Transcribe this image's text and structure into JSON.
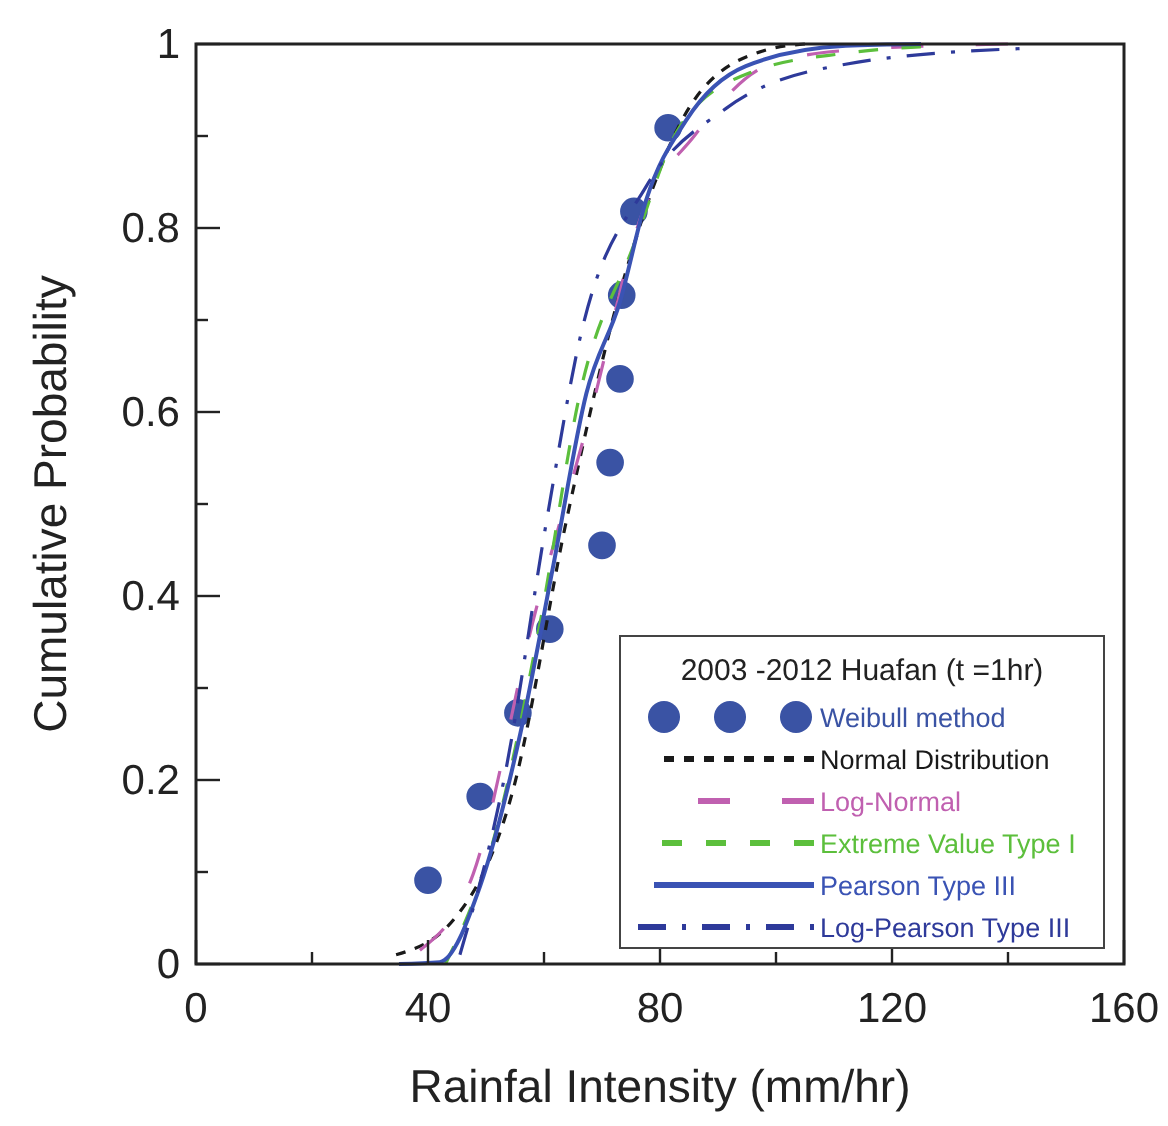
{
  "chart_data": {
    "type": "line",
    "xlabel": "Rainfal Intensity (mm/hr)",
    "ylabel": "Cumulative Probability",
    "legend_title": "2003 -2012 Huafan (t =1hr)",
    "legend": "bottom right",
    "grid": false,
    "xlim": [
      0,
      160
    ],
    "xticks": [
      0,
      {
        "value": 20,
        "label": null
      },
      40,
      {
        "value": 60,
        "label": null
      },
      80,
      {
        "value": 100,
        "label": null
      },
      120,
      {
        "value": 140,
        "label": null
      },
      160
    ],
    "ylim": [
      0,
      1
    ],
    "yticks": [
      0,
      {
        "value": 0.1,
        "label": null
      },
      0.2,
      {
        "value": 0.3,
        "label": null
      },
      0.4,
      {
        "value": 0.5,
        "label": null
      },
      0.6,
      {
        "value": 0.7,
        "label": null
      },
      0.8,
      {
        "value": 0.9,
        "label": null
      },
      1
    ],
    "series": [
      {
        "name": "Weibull method",
        "type": "scatter",
        "marker": "circle",
        "color": "#3a53a4",
        "x": [
          40,
          49,
          55.5,
          61,
          70,
          71.4,
          73.1,
          73.4,
          75.5,
          81.4
        ],
        "values": [
          0.091,
          0.182,
          0.273,
          0.364,
          0.455,
          0.545,
          0.636,
          0.727,
          0.818,
          0.909
        ]
      },
      {
        "name": "Normal Distribution",
        "type": "line",
        "line_style": "dashed",
        "color": "#1a1a1a",
        "x": [
          34.5,
          44.4,
          54.7,
          63.8,
          74,
          86,
          98,
          105
        ],
        "values": [
          0.01,
          0.048,
          0.19,
          0.48,
          0.75,
          0.94,
          0.993,
          1
        ]
      },
      {
        "name": "Log-Normal",
        "type": "line",
        "line_style": "dashed",
        "color": "#c060b0",
        "x": [
          38.6,
          47.8,
          58,
          68.5,
          76.6,
          85.9,
          98.3,
          112,
          140
        ],
        "values": [
          0.015,
          0.098,
          0.37,
          0.61,
          0.81,
          0.9,
          0.976,
          0.993,
          1
        ]
      },
      {
        "name": "Extreme Value Type I",
        "type": "line",
        "line_style": "dashed",
        "color": "#5cbf3c",
        "x": [
          43,
          51.3,
          59.3,
          66.2,
          75.4,
          83.4,
          96,
          112,
          125
        ],
        "values": [
          0,
          0.135,
          0.37,
          0.62,
          0.78,
          0.91,
          0.97,
          0.99,
          0.997
        ]
      },
      {
        "name": "Pearson Type III",
        "type": "line",
        "line_style": "solid",
        "color": "#3a53b4",
        "x": [
          35,
          42,
          49,
          55.9,
          61.6,
          67.3,
          73.1,
          77.6,
          84.5,
          94.8,
          112,
          125
        ],
        "values": [
          0,
          0.002,
          0.085,
          0.25,
          0.433,
          0.62,
          0.72,
          0.83,
          0.917,
          0.976,
          0.998,
          1
        ]
      },
      {
        "name": "Log-Pearson Type III",
        "type": "line",
        "line_style": "dashed",
        "color": "#2e3a9a",
        "x": [
          45.5,
          53.4,
          60.4,
          66.2,
          77.6,
          91.4,
          112,
          142
        ],
        "values": [
          0.01,
          0.21,
          0.48,
          0.68,
          0.845,
          0.93,
          0.978,
          0.995
        ]
      }
    ]
  }
}
